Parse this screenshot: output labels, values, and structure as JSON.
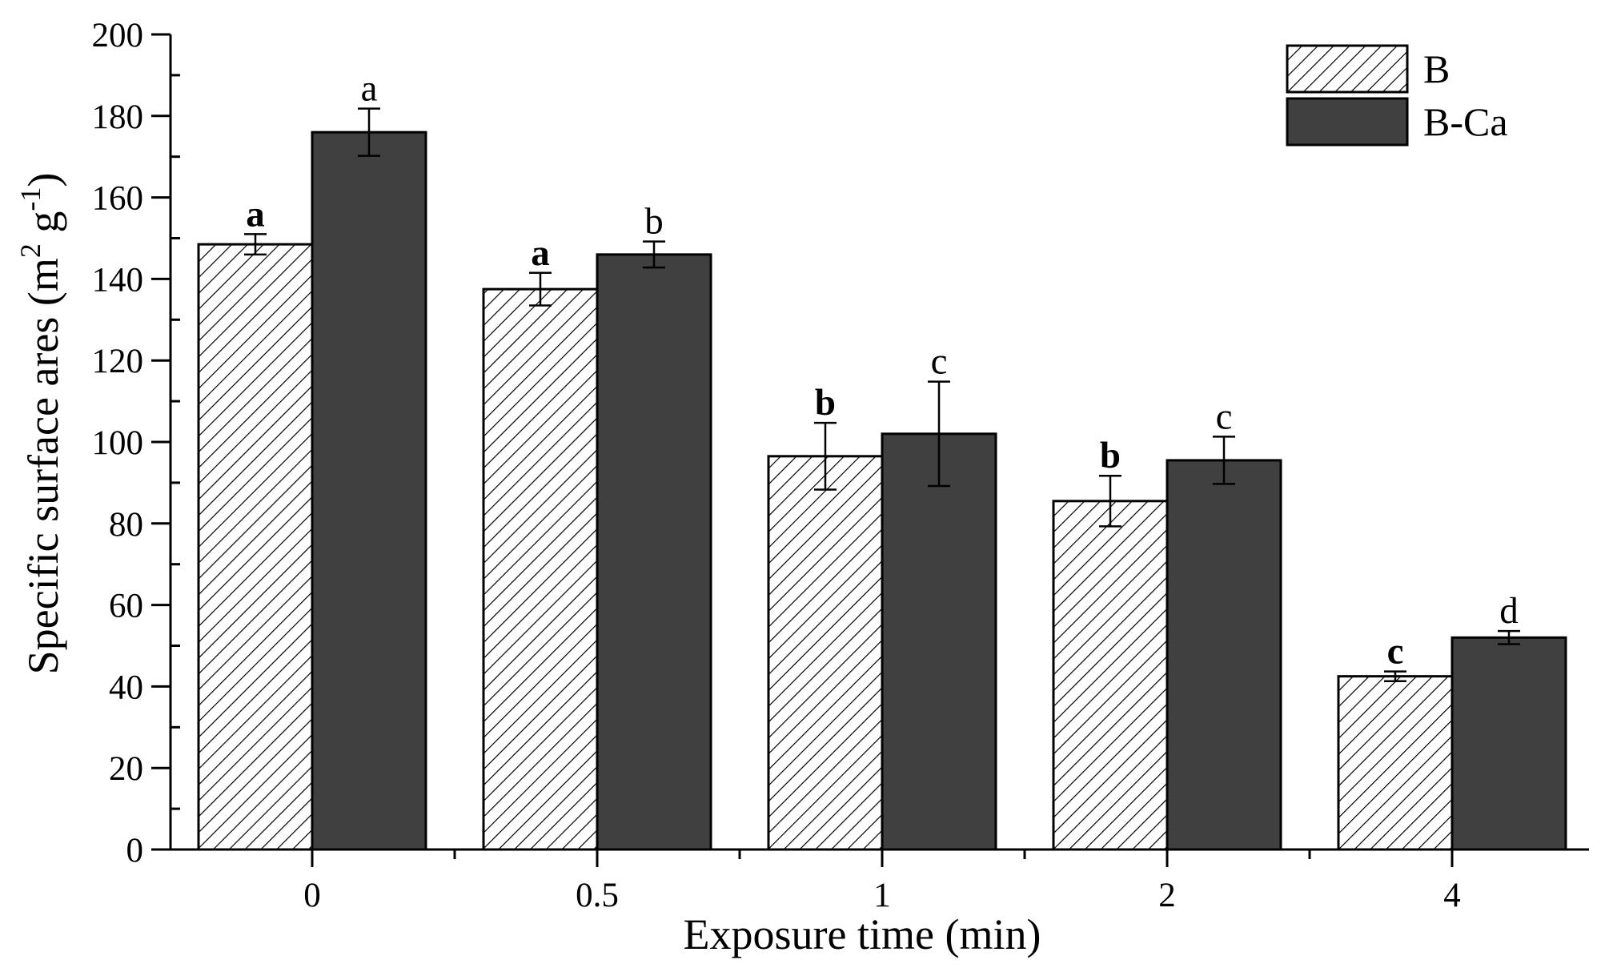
{
  "chart_data": {
    "type": "bar",
    "title": "",
    "xlabel": "Exposure time (min)",
    "ylabel_main": "Specific surface ares (m",
    "ylabel_sup1": "2",
    "ylabel_mid": " g",
    "ylabel_sup2": "-1",
    "ylabel_end": ")",
    "categories": [
      "0",
      "0.5",
      "1",
      "2",
      "4"
    ],
    "ylim": [
      0,
      200
    ],
    "yticks": [
      "0",
      "20",
      "40",
      "60",
      "80",
      "100",
      "120",
      "140",
      "160",
      "180",
      "200"
    ],
    "series": [
      {
        "name": "B",
        "pattern": "hatched",
        "values": [
          148.5,
          137.5,
          96.5,
          85.5,
          42.5
        ],
        "errors": [
          2.5,
          4.0,
          8.2,
          6.2,
          1.2
        ],
        "labels": [
          "a",
          "a",
          "b",
          "b",
          "c"
        ]
      },
      {
        "name": "B-Ca",
        "pattern": "solid",
        "color": "#404040",
        "values": [
          176.0,
          146.0,
          102.0,
          95.5,
          52.0
        ],
        "errors": [
          5.8,
          3.2,
          12.8,
          5.8,
          1.6
        ],
        "labels": [
          "a",
          "b",
          "c",
          "c",
          "d"
        ]
      }
    ],
    "legend_position": "top-right",
    "grid": false
  }
}
